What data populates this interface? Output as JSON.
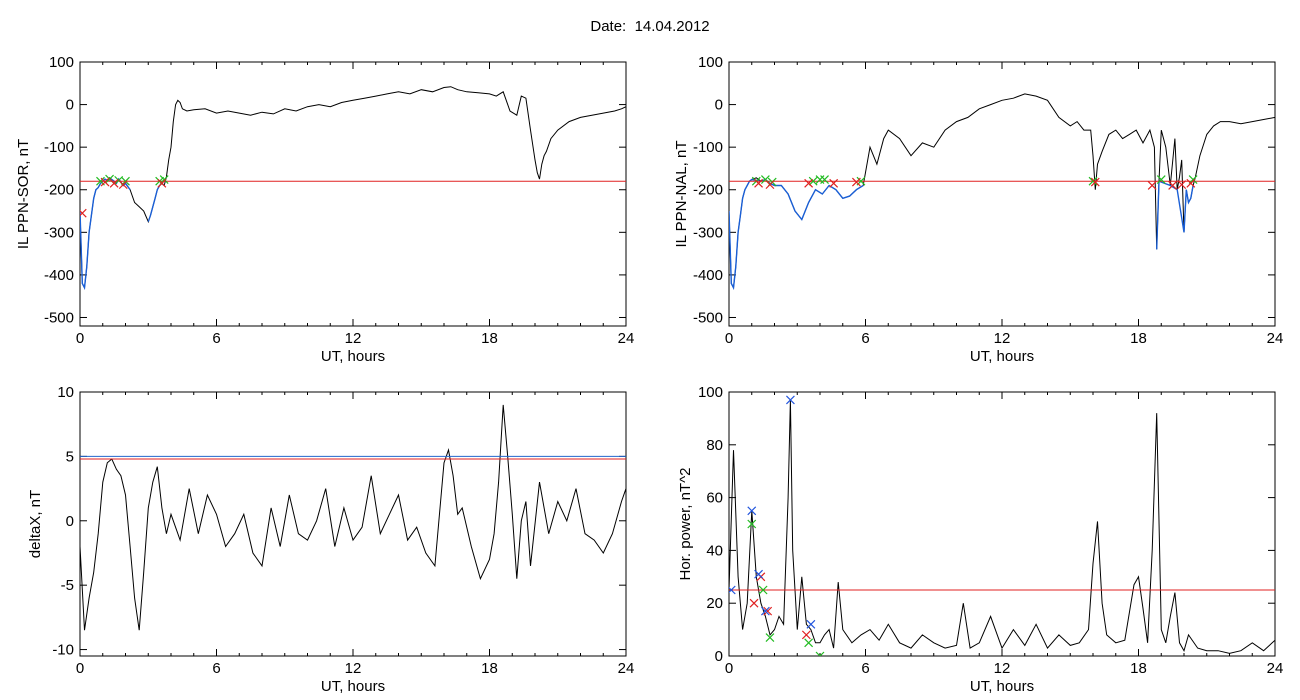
{
  "figure": {
    "title_label": "Date:",
    "title_value": "14.04.2012"
  },
  "colors": {
    "curve": "#000000",
    "highlight": "#1a5fd6",
    "threshold": "#e02020",
    "marker_green": "#22bb22",
    "marker_red": "#e02020",
    "marker_blue": "#2255dd",
    "threshold2": "#2266cc"
  },
  "chart_data": [
    {
      "id": "sor",
      "type": "line",
      "xlabel": "UT, hours",
      "ylabel": "IL PPN-SOR, nT",
      "xlim": [
        0,
        24
      ],
      "ylim": [
        -520,
        100
      ],
      "xticks": [
        0,
        6,
        12,
        18,
        24
      ],
      "yticks": [
        -500,
        -400,
        -300,
        -200,
        -100,
        0,
        100
      ],
      "threshold": -180,
      "series": [
        {
          "x": [
            0,
            0.1,
            0.2,
            0.3,
            0.4,
            0.5,
            0.6,
            0.7,
            0.8,
            0.9,
            1.0,
            1.1,
            1.2,
            1.3,
            1.4,
            1.5,
            1.6,
            1.7,
            1.8,
            1.9,
            2.0,
            2.2,
            2.4,
            2.6,
            2.8,
            3.0,
            3.1,
            3.2,
            3.3,
            3.4,
            3.5,
            3.6,
            3.7,
            3.8,
            3.9,
            4.0,
            4.1,
            4.2,
            4.3,
            4.4,
            4.5,
            4.7,
            5.0,
            5.5,
            6.0,
            6.5,
            7.0,
            7.5,
            8.0,
            8.5,
            9.0,
            9.5,
            10.0,
            10.5,
            11.0,
            11.5,
            12.0,
            12.5,
            13.0,
            13.5,
            14.0,
            14.5,
            15.0,
            15.5,
            16.0,
            16.3,
            16.6,
            17.0,
            17.5,
            18.0,
            18.3,
            18.6,
            18.9,
            19.2,
            19.4,
            19.6,
            19.8,
            20.0,
            20.1,
            20.2,
            20.3,
            20.4,
            20.5,
            20.7,
            21.0,
            21.5,
            22.0,
            22.5,
            23.0,
            23.5,
            23.8,
            24.0
          ],
          "y": [
            -250,
            -420,
            -430,
            -380,
            -300,
            -260,
            -220,
            -200,
            -195,
            -185,
            -180,
            -175,
            -178,
            -172,
            -176,
            -180,
            -185,
            -175,
            -182,
            -190,
            -185,
            -200,
            -230,
            -240,
            -250,
            -275,
            -260,
            -240,
            -220,
            -200,
            -190,
            -185,
            -190,
            -170,
            -130,
            -100,
            -40,
            0,
            10,
            5,
            -10,
            -15,
            -12,
            -10,
            -20,
            -15,
            -20,
            -25,
            -18,
            -22,
            -10,
            -15,
            -5,
            0,
            -5,
            5,
            10,
            15,
            20,
            25,
            30,
            25,
            35,
            30,
            40,
            42,
            35,
            30,
            28,
            25,
            20,
            30,
            -15,
            -25,
            20,
            15,
            -60,
            -130,
            -160,
            -175,
            -140,
            -120,
            -110,
            -80,
            -60,
            -40,
            -30,
            -25,
            -20,
            -15,
            -10,
            -5
          ]
        }
      ],
      "highlight_range": [
        [
          0,
          2.2
        ],
        [
          3.0,
          4.0
        ]
      ],
      "markers_green": [
        [
          0.9,
          -180
        ],
        [
          1.3,
          -175
        ],
        [
          1.7,
          -178
        ],
        [
          2.0,
          -180
        ],
        [
          3.5,
          -180
        ],
        [
          3.7,
          -176
        ]
      ],
      "markers_red": [
        [
          1.1,
          -182
        ],
        [
          1.5,
          -185
        ],
        [
          1.9,
          -188
        ],
        [
          3.6,
          -185
        ],
        [
          0.1,
          -255
        ]
      ]
    },
    {
      "id": "nal",
      "type": "line",
      "xlabel": "UT, hours",
      "ylabel": "IL PPN-NAL, nT",
      "xlim": [
        0,
        24
      ],
      "ylim": [
        -520,
        100
      ],
      "xticks": [
        0,
        6,
        12,
        18,
        24
      ],
      "yticks": [
        -500,
        -400,
        -300,
        -200,
        -100,
        0,
        100
      ],
      "threshold": -180,
      "series": [
        {
          "x": [
            0,
            0.1,
            0.2,
            0.3,
            0.4,
            0.5,
            0.6,
            0.7,
            0.8,
            0.9,
            1.0,
            1.2,
            1.4,
            1.6,
            1.8,
            2.0,
            2.3,
            2.6,
            2.9,
            3.2,
            3.5,
            3.8,
            4.1,
            4.4,
            4.7,
            5.0,
            5.3,
            5.6,
            5.9,
            6.2,
            6.5,
            6.8,
            7.0,
            7.5,
            8.0,
            8.5,
            9.0,
            9.5,
            10.0,
            10.5,
            11.0,
            11.5,
            12.0,
            12.5,
            13.0,
            13.5,
            14.0,
            14.5,
            15.0,
            15.3,
            15.6,
            15.9,
            16.0,
            16.1,
            16.2,
            16.4,
            16.7,
            17.0,
            17.3,
            17.6,
            17.9,
            18.2,
            18.5,
            18.7,
            18.8,
            18.9,
            19.0,
            19.2,
            19.4,
            19.6,
            19.7,
            19.8,
            19.9,
            20.0,
            20.1,
            20.2,
            20.3,
            20.4,
            20.5,
            20.7,
            21.0,
            21.3,
            21.6,
            22.0,
            22.5,
            23.0,
            23.5,
            24.0
          ],
          "y": [
            -250,
            -420,
            -430,
            -380,
            -300,
            -260,
            -220,
            -200,
            -190,
            -180,
            -176,
            -172,
            -180,
            -176,
            -185,
            -190,
            -190,
            -210,
            -250,
            -270,
            -230,
            -200,
            -210,
            -190,
            -200,
            -220,
            -215,
            -200,
            -190,
            -100,
            -140,
            -80,
            -60,
            -80,
            -120,
            -90,
            -100,
            -60,
            -40,
            -30,
            -10,
            0,
            10,
            15,
            25,
            20,
            10,
            -30,
            -50,
            -40,
            -60,
            -60,
            -120,
            -200,
            -140,
            -110,
            -70,
            -60,
            -80,
            -70,
            -60,
            -90,
            -60,
            -100,
            -340,
            -180,
            -60,
            -100,
            -190,
            -80,
            -200,
            -170,
            -130,
            -300,
            -200,
            -230,
            -220,
            -190,
            -170,
            -120,
            -70,
            -50,
            -40,
            -40,
            -45,
            -40,
            -35,
            -30
          ]
        }
      ],
      "highlight_range": [
        [
          0,
          6.0
        ],
        [
          15.8,
          16.3
        ],
        [
          18.6,
          20.6
        ]
      ],
      "markers_green": [
        [
          1.2,
          -180
        ],
        [
          1.6,
          -176
        ],
        [
          1.9,
          -182
        ],
        [
          3.7,
          -180
        ],
        [
          4.2,
          -176
        ],
        [
          5.8,
          -180
        ],
        [
          16.0,
          -180
        ],
        [
          19.0,
          -176
        ],
        [
          20.4,
          -176
        ],
        [
          4.0,
          -176
        ]
      ],
      "markers_red": [
        [
          1.3,
          -185
        ],
        [
          1.8,
          -188
        ],
        [
          3.5,
          -185
        ],
        [
          4.6,
          -185
        ],
        [
          5.6,
          -182
        ],
        [
          16.1,
          -182
        ],
        [
          18.6,
          -190
        ],
        [
          19.5,
          -190
        ],
        [
          19.9,
          -188
        ],
        [
          20.3,
          -185
        ]
      ]
    },
    {
      "id": "deltax",
      "type": "line",
      "xlabel": "UT, hours",
      "ylabel": "deltaX, nT",
      "xlim": [
        0,
        24
      ],
      "ylim": [
        -10.5,
        10
      ],
      "xticks": [
        0,
        6,
        12,
        18,
        24
      ],
      "yticks": [
        -10,
        -5,
        0,
        5,
        10
      ],
      "threshold": 4.8,
      "threshold2": 5.0,
      "series": [
        {
          "x": [
            0,
            0.2,
            0.4,
            0.6,
            0.8,
            1.0,
            1.2,
            1.4,
            1.6,
            1.8,
            2.0,
            2.2,
            2.4,
            2.6,
            2.8,
            3.0,
            3.2,
            3.4,
            3.6,
            3.8,
            4.0,
            4.4,
            4.8,
            5.2,
            5.6,
            6.0,
            6.4,
            6.8,
            7.2,
            7.6,
            8.0,
            8.4,
            8.8,
            9.2,
            9.6,
            10.0,
            10.4,
            10.8,
            11.2,
            11.6,
            12.0,
            12.4,
            12.8,
            13.2,
            13.6,
            14.0,
            14.4,
            14.8,
            15.2,
            15.6,
            16.0,
            16.2,
            16.4,
            16.6,
            16.8,
            17.2,
            17.6,
            18.0,
            18.2,
            18.4,
            18.6,
            18.8,
            19.0,
            19.2,
            19.4,
            19.6,
            19.8,
            20.2,
            20.6,
            21.0,
            21.4,
            21.8,
            22.2,
            22.6,
            23.0,
            23.4,
            23.8,
            24.0
          ],
          "y": [
            -2,
            -8.5,
            -6,
            -4,
            -1,
            3,
            4.5,
            4.8,
            4,
            3.5,
            2,
            -2,
            -6,
            -8.5,
            -4,
            1,
            3,
            4.2,
            1,
            -1,
            0.5,
            -1.5,
            2.5,
            -1,
            2,
            0.5,
            -2,
            -1,
            0.5,
            -2.5,
            -3.5,
            1,
            -2,
            2,
            -1,
            -1.5,
            0,
            2.5,
            -2,
            1,
            -1.5,
            -0.5,
            3.5,
            -1,
            0.5,
            2,
            -1.5,
            -0.5,
            -2.5,
            -3.5,
            4.5,
            5.5,
            3.5,
            0.5,
            1,
            -2,
            -4.5,
            -3,
            -1,
            3,
            9,
            5,
            0.5,
            -4.5,
            0,
            1.5,
            -3.5,
            3,
            -1,
            1.5,
            0,
            2.5,
            -1,
            -1.5,
            -2.5,
            -1,
            1.5,
            2.5
          ]
        }
      ]
    },
    {
      "id": "power",
      "type": "line",
      "xlabel": "UT, hours",
      "ylabel": "Hor. power, nT^2",
      "xlim": [
        0,
        24
      ],
      "ylim": [
        0,
        100
      ],
      "xticks": [
        0,
        6,
        12,
        18,
        24
      ],
      "yticks": [
        0,
        20,
        40,
        60,
        80,
        100
      ],
      "threshold": 25,
      "series": [
        {
          "x": [
            0,
            0.2,
            0.4,
            0.6,
            0.8,
            1.0,
            1.2,
            1.4,
            1.6,
            1.8,
            2.0,
            2.2,
            2.4,
            2.6,
            2.7,
            2.8,
            2.9,
            3.0,
            3.2,
            3.4,
            3.6,
            3.8,
            4.0,
            4.2,
            4.4,
            4.6,
            4.8,
            5.0,
            5.4,
            5.8,
            6.2,
            6.6,
            7.0,
            7.5,
            8.0,
            8.5,
            9.0,
            9.5,
            10.0,
            10.3,
            10.6,
            11.0,
            11.5,
            12.0,
            12.5,
            13.0,
            13.5,
            14.0,
            14.5,
            15.0,
            15.4,
            15.8,
            16.0,
            16.2,
            16.4,
            16.6,
            17.0,
            17.4,
            17.8,
            18.0,
            18.2,
            18.4,
            18.6,
            18.8,
            19.0,
            19.2,
            19.4,
            19.6,
            19.8,
            20.0,
            20.2,
            20.6,
            21.0,
            21.5,
            22.0,
            22.5,
            23.0,
            23.5,
            24.0
          ],
          "y": [
            25,
            78,
            30,
            10,
            20,
            55,
            30,
            20,
            15,
            8,
            10,
            15,
            12,
            60,
            97,
            40,
            25,
            10,
            30,
            12,
            10,
            5,
            5,
            8,
            10,
            3,
            28,
            10,
            5,
            8,
            10,
            6,
            12,
            5,
            3,
            8,
            5,
            3,
            4,
            20,
            3,
            5,
            15,
            3,
            10,
            4,
            12,
            3,
            8,
            4,
            5,
            10,
            35,
            51,
            20,
            8,
            5,
            6,
            27,
            30,
            18,
            5,
            40,
            92,
            10,
            5,
            15,
            24,
            5,
            2,
            8,
            3,
            2,
            2,
            1,
            2,
            5,
            2,
            6
          ]
        }
      ],
      "markers_blue": [
        [
          0.1,
          25
        ],
        [
          1.0,
          55
        ],
        [
          1.3,
          31
        ],
        [
          1.6,
          17
        ],
        [
          2.7,
          97
        ],
        [
          3.6,
          12
        ]
      ],
      "markers_green": [
        [
          1.0,
          50
        ],
        [
          1.5,
          25
        ],
        [
          1.8,
          7
        ],
        [
          3.5,
          5
        ],
        [
          4.0,
          0
        ]
      ],
      "markers_red": [
        [
          1.1,
          20
        ],
        [
          1.4,
          30
        ],
        [
          1.7,
          17
        ],
        [
          3.4,
          8
        ]
      ]
    }
  ]
}
